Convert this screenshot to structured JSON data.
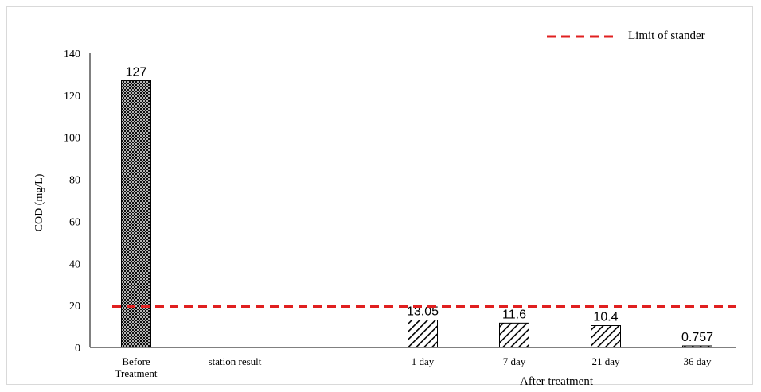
{
  "chart_data": {
    "type": "bar",
    "categories": [
      "Before\nTreatment",
      "station result",
      "1 day",
      "7 day",
      "21 day",
      "36 day"
    ],
    "values": [
      127,
      null,
      13.05,
      11.6,
      10.4,
      0.757
    ],
    "value_labels": [
      "127",
      "",
      "13.05",
      "11.6",
      "10.4",
      "0.757"
    ],
    "patterns": [
      "crosshatch",
      "none",
      "diagonal",
      "diagonal",
      "diagonal",
      "diagonal"
    ],
    "title": "",
    "xlabel": "After treatment",
    "ylabel": "COD (mg/L)",
    "ylim": [
      0,
      140
    ],
    "yticks": [
      0,
      20,
      40,
      60,
      80,
      100,
      120,
      140
    ],
    "grid": false,
    "reference_line": {
      "name": "Limit of stander",
      "value": 19.5,
      "color": "#e02020",
      "style": "dashed"
    },
    "legend": {
      "position": "top-right",
      "entries": [
        "Limit of stander"
      ]
    }
  }
}
